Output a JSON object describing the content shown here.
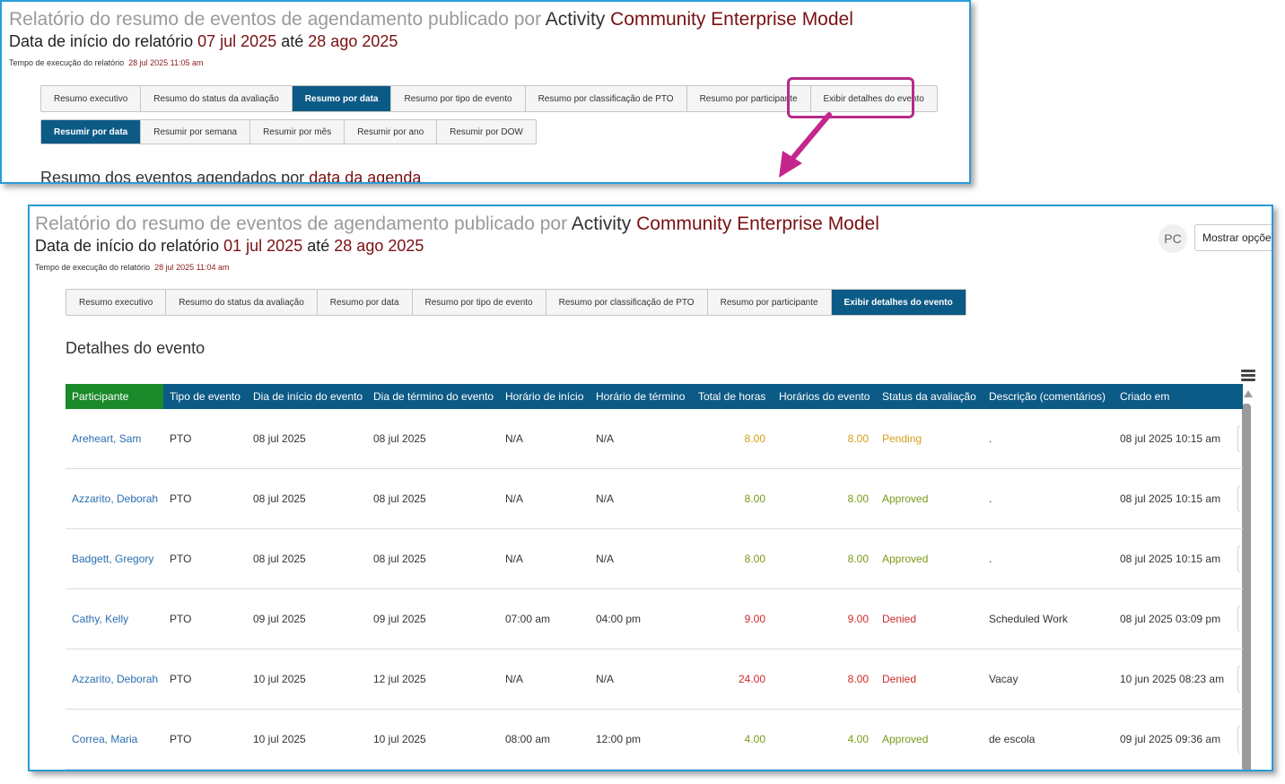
{
  "colors": {
    "panel_border": "#2b9bd8",
    "title_gray": "#9a9a9a",
    "accent_dark_red": "#7a1012",
    "tab_active": "#0c5a86",
    "header_green": "#1a8a2a",
    "link_blue": "#2b6fb0",
    "highlight_magenta": "#b52a8a",
    "status_pending": "#d4a01a",
    "status_approved": "#7a9a1a",
    "status_denied": "#d02a2a"
  },
  "top_panel": {
    "title_prefix": "Relatório do resumo de eventos de agendamento publicado por",
    "title_activity": "Activity",
    "title_model": "Community Enterprise Model",
    "date_label": "Data de início do relatório",
    "date_start": "07 jul 2025",
    "date_until": "até",
    "date_end": "28 ago 2025",
    "runtime_label": "Tempo de execução do relatório",
    "runtime_value": "28 jul 2025 11:05 am",
    "tabs": [
      "Resumo executivo",
      "Resumo do status da avaliação",
      "Resumo por data",
      "Resumo por tipo de evento",
      "Resumo por classificação de PTO",
      "Resumo por participante",
      "Exibir detalhes do evento"
    ],
    "active_tab_index": 2,
    "subtabs": [
      "Resumir por data",
      "Resumir por semana",
      "Resumir por mês",
      "Resumir por ano",
      "Resumir por DOW"
    ],
    "active_subtab_index": 0,
    "section_prefix": "Resumo dos eventos agendados por",
    "section_highlight": "data da agenda"
  },
  "bottom_panel": {
    "title_prefix": "Relatório do resumo de eventos de agendamento publicado por",
    "title_activity": "Activity",
    "title_model": "Community Enterprise Model",
    "date_label": "Data de início do relatório",
    "date_start": "01 jul 2025",
    "date_until": "até",
    "date_end": "28 ago 2025",
    "runtime_label": "Tempo de execução do relatório",
    "runtime_value": "28 jul 2025 11:04 am",
    "avatar_initials": "PC",
    "show_options_label": "Mostrar opçõe",
    "tabs": [
      "Resumo executivo",
      "Resumo do status da avaliação",
      "Resumo por data",
      "Resumo por tipo de evento",
      "Resumo por classificação de PTO",
      "Resumo por participante",
      "Exibir detalhes do evento"
    ],
    "active_tab_index": 6,
    "section_heading": "Detalhes do evento",
    "table": {
      "columns": [
        "Participante",
        "Tipo de evento",
        "Dia de início do evento",
        "Dia de término do evento",
        "Horário de início",
        "Horário de término",
        "Total de horas",
        "Horários do evento",
        "Status da avaliação",
        "Descrição (comentários)",
        "Criado em"
      ],
      "rows": [
        {
          "participant": "Areheart, Sam",
          "type": "PTO",
          "start_day": "08 jul 2025",
          "end_day": "08 jul 2025",
          "start_time": "N/A",
          "end_time": "N/A",
          "total_hours": "8.00",
          "event_hours": "8.00",
          "status": "Pending",
          "description": ".",
          "created": "08 jul 2025 10:15 am"
        },
        {
          "participant": "Azzarito, Deborah",
          "type": "PTO",
          "start_day": "08 jul 2025",
          "end_day": "08 jul 2025",
          "start_time": "N/A",
          "end_time": "N/A",
          "total_hours": "8.00",
          "event_hours": "8.00",
          "status": "Approved",
          "description": ".",
          "created": "08 jul 2025 10:15 am"
        },
        {
          "participant": "Badgett, Gregory",
          "type": "PTO",
          "start_day": "08 jul 2025",
          "end_day": "08 jul 2025",
          "start_time": "N/A",
          "end_time": "N/A",
          "total_hours": "8.00",
          "event_hours": "8.00",
          "status": "Approved",
          "description": ".",
          "created": "08 jul 2025 10:15 am"
        },
        {
          "participant": "Cathy, Kelly",
          "type": "PTO",
          "start_day": "09 jul 2025",
          "end_day": "09 jul 2025",
          "start_time": "07:00 am",
          "end_time": "04:00 pm",
          "total_hours": "9.00",
          "event_hours": "9.00",
          "status": "Denied",
          "description": "Scheduled Work",
          "created": "08 jul 2025 03:09 pm"
        },
        {
          "participant": "Azzarito, Deborah",
          "type": "PTO",
          "start_day": "10 jul 2025",
          "end_day": "12 jul 2025",
          "start_time": "N/A",
          "end_time": "N/A",
          "total_hours": "24.00",
          "event_hours": "8.00",
          "status": "Denied",
          "description": "Vacay",
          "created": "10 jun 2025 08:23 am"
        },
        {
          "participant": "Correa, Maria",
          "type": "PTO",
          "start_day": "10 jul 2025",
          "end_day": "10 jul 2025",
          "start_time": "08:00 am",
          "end_time": "12:00 pm",
          "total_hours": "4.00",
          "event_hours": "4.00",
          "status": "Approved",
          "description": "de escola",
          "created": "09 jul 2025 09:36 am"
        }
      ]
    }
  }
}
